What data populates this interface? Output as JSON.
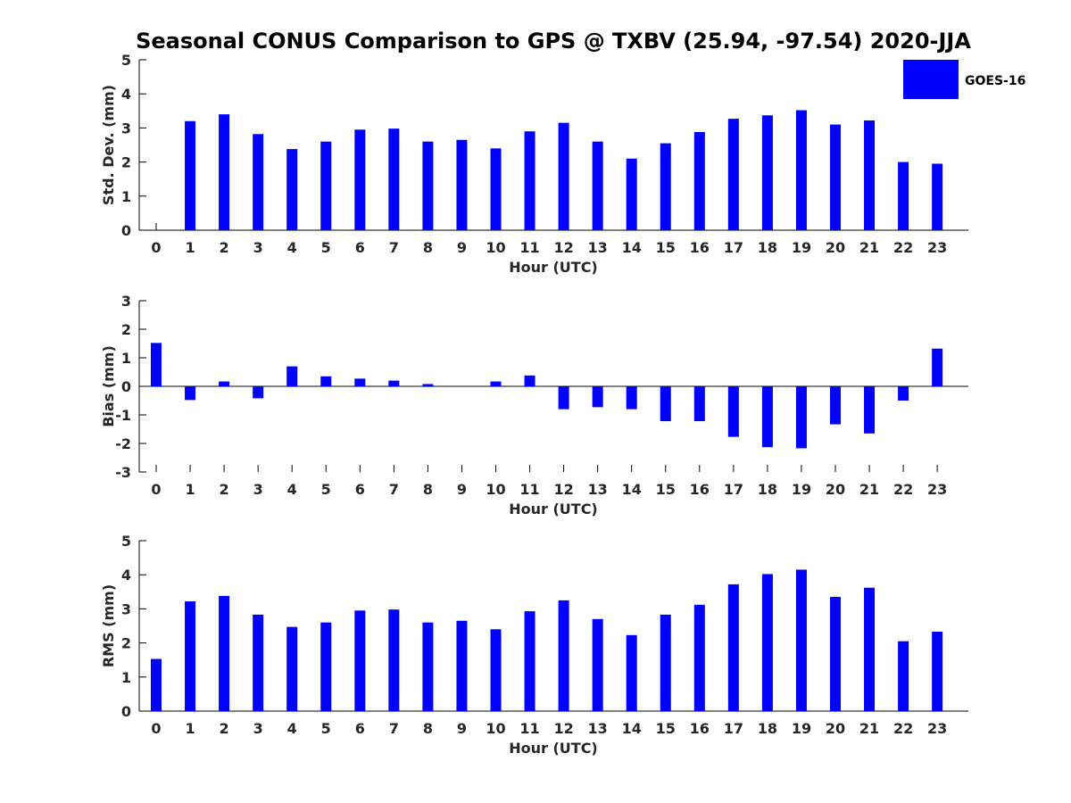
{
  "title": "Seasonal CONUS Comparison to GPS @ TXBV (25.94, -97.54) 2020-JJA",
  "legend": {
    "label": "GOES-16",
    "color": "#0000ff"
  },
  "chart_data": [
    {
      "type": "bar",
      "xlabel": "Hour (UTC)",
      "ylabel": "Std. Dev. (mm)",
      "categories": [
        0,
        1,
        2,
        3,
        4,
        5,
        6,
        7,
        8,
        9,
        10,
        11,
        12,
        13,
        14,
        15,
        16,
        17,
        18,
        19,
        20,
        21,
        22,
        23
      ],
      "ylim": [
        0,
        5
      ],
      "yticks": [
        0,
        1,
        2,
        3,
        4,
        5
      ],
      "series": [
        {
          "name": "GOES-16",
          "color": "#0000ff",
          "values": [
            0.0,
            3.2,
            3.4,
            2.82,
            2.38,
            2.6,
            2.95,
            2.98,
            2.6,
            2.65,
            2.4,
            2.9,
            3.15,
            2.6,
            2.1,
            2.55,
            2.88,
            3.27,
            3.37,
            3.52,
            3.1,
            3.22,
            2.0,
            1.95
          ]
        }
      ],
      "grid": false
    },
    {
      "type": "bar",
      "xlabel": "Hour (UTC)",
      "ylabel": "Bias (mm)",
      "categories": [
        0,
        1,
        2,
        3,
        4,
        5,
        6,
        7,
        8,
        9,
        10,
        11,
        12,
        13,
        14,
        15,
        16,
        17,
        18,
        19,
        20,
        21,
        22,
        23
      ],
      "ylim": [
        -3,
        3
      ],
      "yticks": [
        -3,
        -2,
        -1,
        0,
        1,
        2,
        3
      ],
      "series": [
        {
          "name": "GOES-16",
          "color": "#0000ff",
          "values": [
            1.52,
            -0.48,
            0.17,
            -0.42,
            0.7,
            0.35,
            0.27,
            0.2,
            0.08,
            0.0,
            0.17,
            0.38,
            -0.8,
            -0.73,
            -0.8,
            -1.22,
            -1.22,
            -1.77,
            -2.13,
            -2.17,
            -1.33,
            -1.65,
            -0.5,
            1.32
          ]
        }
      ],
      "grid": false
    },
    {
      "type": "bar",
      "xlabel": "Hour (UTC)",
      "ylabel": "RMS (mm)",
      "categories": [
        0,
        1,
        2,
        3,
        4,
        5,
        6,
        7,
        8,
        9,
        10,
        11,
        12,
        13,
        14,
        15,
        16,
        17,
        18,
        19,
        20,
        21,
        22,
        23
      ],
      "ylim": [
        0,
        5
      ],
      "yticks": [
        0,
        1,
        2,
        3,
        4,
        5
      ],
      "series": [
        {
          "name": "GOES-16",
          "color": "#0000ff",
          "values": [
            1.53,
            3.22,
            3.38,
            2.83,
            2.47,
            2.6,
            2.95,
            2.98,
            2.6,
            2.65,
            2.4,
            2.93,
            3.25,
            2.7,
            2.23,
            2.83,
            3.12,
            3.72,
            4.02,
            4.15,
            3.35,
            3.62,
            2.05,
            2.33
          ]
        }
      ],
      "grid": false
    }
  ]
}
